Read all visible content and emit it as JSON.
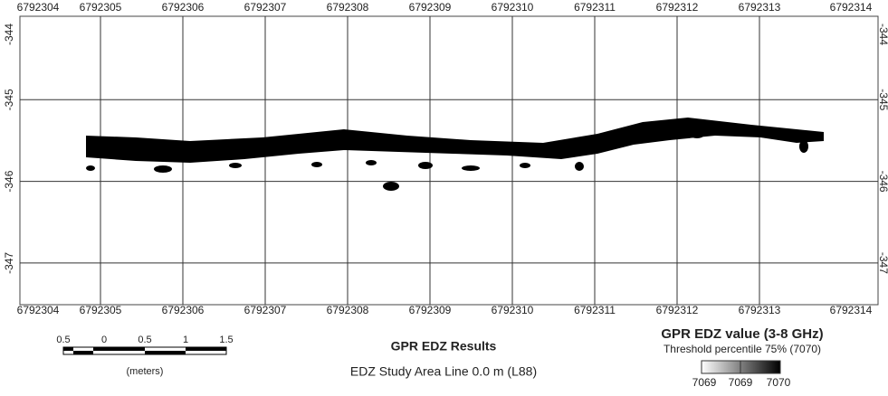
{
  "map": {
    "top_labels": [
      6792304,
      6792305,
      6792306,
      6792307,
      6792308,
      6792309,
      6792310,
      6792311,
      6792312,
      6792313,
      6792314
    ],
    "bottom_labels": [
      6792304,
      6792305,
      6792306,
      6792307,
      6792308,
      6792309,
      6792310,
      6792311,
      6792312,
      6792313,
      6792314
    ],
    "left_labels": [
      -344,
      -345,
      -346,
      -347
    ],
    "right_labels": [
      -344,
      -345,
      -346,
      -347
    ]
  },
  "scale_bar": {
    "labels": [
      "0.5",
      "0",
      "0.5",
      "1",
      "1.5"
    ],
    "unit": "(meters)"
  },
  "header": {
    "title": "GPR EDZ Results",
    "subtitle": "EDZ Study Area Line 0.0 m (L88)"
  },
  "legend": {
    "title": "GPR EDZ value (3-8 GHz)",
    "subtitle": "Threshold percentile 75% (7070)",
    "labels": [
      7069,
      7069,
      7070
    ]
  }
}
